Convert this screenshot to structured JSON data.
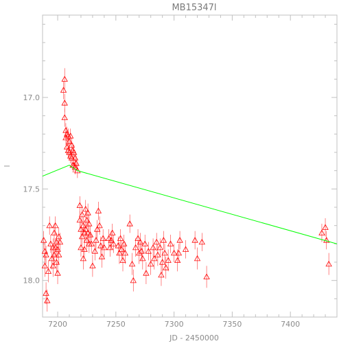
{
  "chart_data": {
    "type": "scatter",
    "title": "MB15347l",
    "xlabel": "JD - 2450000",
    "ylabel": "",
    "xlim": [
      7187,
      7440
    ],
    "ylim": [
      18.2,
      16.55
    ],
    "y_inverted": true,
    "xticks": [
      7200,
      7250,
      7300,
      7350,
      7400
    ],
    "yticks": [
      17.0,
      17.5,
      18.0
    ],
    "ytick_labels": [
      "17.0",
      "17.5",
      "18.0"
    ],
    "grid": false,
    "colors": {
      "data": "#ff0000",
      "model": "#00ff00",
      "axes": "#c0c0c0",
      "text": "#808080"
    },
    "series": [
      {
        "marker": "triangle",
        "points": [
          [
            7188,
            17.78,
            0.05
          ],
          [
            7189,
            17.84,
            0.05
          ],
          [
            7189,
            17.92,
            0.06
          ],
          [
            7190,
            17.86,
            0.05
          ],
          [
            7190,
            18.07,
            0.06
          ],
          [
            7191,
            18.11,
            0.06
          ],
          [
            7192,
            17.95,
            0.06
          ],
          [
            7193,
            17.7,
            0.05
          ],
          [
            7194,
            17.8,
            0.05
          ],
          [
            7195,
            17.88,
            0.06
          ],
          [
            7196,
            17.82,
            0.05
          ],
          [
            7196,
            17.92,
            0.06
          ],
          [
            7197,
            17.74,
            0.05
          ],
          [
            7197,
            17.86,
            0.05
          ],
          [
            7198,
            17.7,
            0.05
          ],
          [
            7198,
            17.82,
            0.05
          ],
          [
            7199,
            17.79,
            0.05
          ],
          [
            7199,
            17.9,
            0.06
          ],
          [
            7200,
            17.83,
            0.05
          ],
          [
            7200,
            17.96,
            0.06
          ],
          [
            7201,
            17.76,
            0.05
          ],
          [
            7201,
            17.86,
            0.05
          ],
          [
            7202,
            17.79,
            0.05
          ],
          [
            7205,
            16.96,
            0.05
          ],
          [
            7206,
            16.9,
            0.06
          ],
          [
            7206,
            17.03,
            0.05
          ],
          [
            7206,
            17.11,
            0.05
          ],
          [
            7207,
            17.18,
            0.04
          ],
          [
            7207,
            17.22,
            0.04
          ],
          [
            7208,
            17.2,
            0.04
          ],
          [
            7208,
            17.27,
            0.04
          ],
          [
            7209,
            17.21,
            0.04
          ],
          [
            7209,
            17.29,
            0.04
          ],
          [
            7210,
            17.24,
            0.04
          ],
          [
            7210,
            17.3,
            0.04
          ],
          [
            7211,
            17.21,
            0.04
          ],
          [
            7211,
            17.32,
            0.04
          ],
          [
            7212,
            17.26,
            0.04
          ],
          [
            7212,
            17.33,
            0.04
          ],
          [
            7213,
            17.29,
            0.04
          ],
          [
            7213,
            17.37,
            0.04
          ],
          [
            7214,
            17.3,
            0.04
          ],
          [
            7214,
            17.37,
            0.04
          ],
          [
            7215,
            17.33,
            0.04
          ],
          [
            7215,
            17.38,
            0.04
          ],
          [
            7216,
            17.36,
            0.04
          ],
          [
            7217,
            17.4,
            0.04
          ],
          [
            7219,
            17.59,
            0.05
          ],
          [
            7219,
            17.67,
            0.05
          ],
          [
            7220,
            17.72,
            0.05
          ],
          [
            7220,
            17.82,
            0.05
          ],
          [
            7221,
            17.64,
            0.05
          ],
          [
            7221,
            17.76,
            0.05
          ],
          [
            7222,
            17.7,
            0.05
          ],
          [
            7222,
            17.88,
            0.06
          ],
          [
            7223,
            17.74,
            0.05
          ],
          [
            7223,
            17.83,
            0.05
          ],
          [
            7224,
            17.61,
            0.05
          ],
          [
            7224,
            17.72,
            0.05
          ],
          [
            7225,
            17.67,
            0.05
          ],
          [
            7225,
            17.78,
            0.05
          ],
          [
            7226,
            17.63,
            0.05
          ],
          [
            7226,
            17.74,
            0.05
          ],
          [
            7227,
            17.69,
            0.05
          ],
          [
            7227,
            17.8,
            0.05
          ],
          [
            7228,
            17.75,
            0.05
          ],
          [
            7229,
            17.8,
            0.05
          ],
          [
            7230,
            17.92,
            0.06
          ],
          [
            7232,
            17.84,
            0.05
          ],
          [
            7233,
            17.78,
            0.05
          ],
          [
            7234,
            17.72,
            0.05
          ],
          [
            7235,
            17.62,
            0.05
          ],
          [
            7236,
            17.7,
            0.05
          ],
          [
            7237,
            17.81,
            0.05
          ],
          [
            7238,
            17.87,
            0.06
          ],
          [
            7239,
            17.77,
            0.05
          ],
          [
            7240,
            17.82,
            0.05
          ],
          [
            7244,
            17.77,
            0.05
          ],
          [
            7245,
            17.82,
            0.05
          ],
          [
            7246,
            17.78,
            0.05
          ],
          [
            7247,
            17.74,
            0.05
          ],
          [
            7248,
            17.8,
            0.05
          ],
          [
            7252,
            17.81,
            0.05
          ],
          [
            7253,
            17.85,
            0.06
          ],
          [
            7254,
            17.77,
            0.05
          ],
          [
            7255,
            17.83,
            0.05
          ],
          [
            7256,
            17.89,
            0.06
          ],
          [
            7257,
            17.8,
            0.05
          ],
          [
            7258,
            17.85,
            0.06
          ],
          [
            7262,
            17.69,
            0.05
          ],
          [
            7264,
            17.91,
            0.06
          ],
          [
            7265,
            18.0,
            0.06
          ],
          [
            7267,
            17.82,
            0.05
          ],
          [
            7269,
            17.77,
            0.05
          ],
          [
            7270,
            17.85,
            0.06
          ],
          [
            7271,
            17.79,
            0.05
          ],
          [
            7272,
            17.84,
            0.05
          ],
          [
            7273,
            17.88,
            0.06
          ],
          [
            7275,
            17.8,
            0.05
          ],
          [
            7276,
            17.96,
            0.06
          ],
          [
            7278,
            17.84,
            0.05
          ],
          [
            7280,
            17.91,
            0.06
          ],
          [
            7282,
            17.82,
            0.05
          ],
          [
            7283,
            17.88,
            0.06
          ],
          [
            7285,
            17.79,
            0.05
          ],
          [
            7286,
            17.86,
            0.06
          ],
          [
            7288,
            17.82,
            0.05
          ],
          [
            7289,
            17.97,
            0.06
          ],
          [
            7290,
            17.9,
            0.06
          ],
          [
            7291,
            17.78,
            0.05
          ],
          [
            7292,
            17.85,
            0.05
          ],
          [
            7293,
            17.93,
            0.06
          ],
          [
            7295,
            17.89,
            0.06
          ],
          [
            7297,
            17.8,
            0.05
          ],
          [
            7300,
            17.85,
            0.05
          ],
          [
            7303,
            17.89,
            0.06
          ],
          [
            7304,
            17.85,
            0.05
          ],
          [
            7305,
            17.78,
            0.05
          ],
          [
            7310,
            17.83,
            0.05
          ],
          [
            7318,
            17.78,
            0.05
          ],
          [
            7320,
            17.88,
            0.06
          ],
          [
            7324,
            17.79,
            0.05
          ],
          [
            7328,
            17.98,
            0.06
          ],
          [
            7427,
            17.74,
            0.05
          ],
          [
            7430,
            17.71,
            0.05
          ],
          [
            7431,
            17.78,
            0.05
          ],
          [
            7433,
            17.91,
            0.06
          ]
        ]
      }
    ],
    "model_line": {
      "x": [
        7187,
        7210,
        7217,
        7440
      ],
      "y": [
        17.43,
        17.37,
        17.4,
        17.8
      ]
    }
  }
}
